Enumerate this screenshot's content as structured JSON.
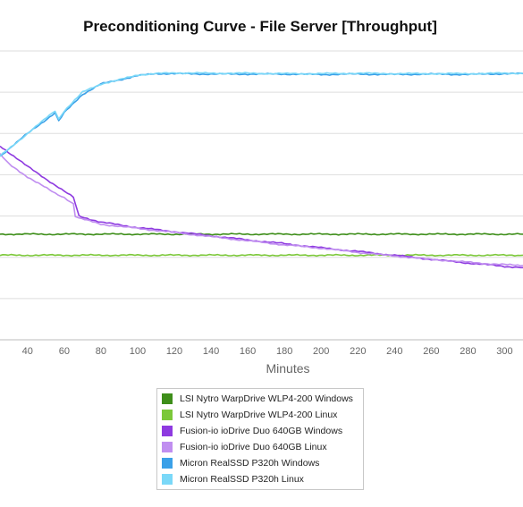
{
  "chart_data": {
    "type": "line",
    "title": "Preconditioning Curve - File Server [Throughput]",
    "xlabel": "Minutes",
    "ylabel": "",
    "x_ticks": [
      40,
      60,
      80,
      100,
      120,
      140,
      160,
      180,
      200,
      220,
      240,
      260,
      280,
      300
    ],
    "xlim": [
      25,
      310
    ],
    "ylim": [
      0,
      7
    ],
    "y_gridlines": [
      1,
      2,
      3,
      4,
      5,
      6,
      7
    ],
    "y_tick_labels_visible": false,
    "legend_placement": "bottom-center",
    "series": [
      {
        "name": "LSI Nytro WarpDrive WLP4-200 Windows",
        "color": "#3e8e1a",
        "x": [
          25,
          310
        ],
        "y": [
          2.56,
          2.56
        ]
      },
      {
        "name": "LSI Nytro WarpDrive WLP4-200 Linux",
        "color": "#7cc83a",
        "x": [
          25,
          310
        ],
        "y": [
          2.05,
          2.05
        ]
      },
      {
        "name": "Fusion-io ioDrive Duo 640GB Windows",
        "color": "#8e3ae0",
        "x": [
          25,
          40,
          60,
          65,
          66,
          68,
          80,
          100,
          120,
          140,
          160,
          180,
          200,
          220,
          240,
          260,
          280,
          300,
          310
        ],
        "y": [
          4.7,
          4.2,
          3.6,
          3.45,
          3.3,
          3.0,
          2.85,
          2.72,
          2.62,
          2.52,
          2.42,
          2.33,
          2.23,
          2.14,
          2.05,
          1.95,
          1.86,
          1.78,
          1.75
        ]
      },
      {
        "name": "Fusion-io ioDrive Duo 640GB Linux",
        "color": "#c08ef0",
        "x": [
          25,
          30,
          40,
          55,
          60,
          65,
          66,
          68,
          80,
          100,
          120,
          140,
          160,
          180,
          200,
          220,
          240,
          260,
          280,
          300,
          310
        ],
        "y": [
          4.5,
          4.25,
          3.95,
          3.55,
          3.45,
          3.3,
          3.0,
          2.95,
          2.8,
          2.7,
          2.6,
          2.5,
          2.4,
          2.3,
          2.22,
          2.12,
          2.03,
          1.95,
          1.88,
          1.82,
          1.8
        ]
      },
      {
        "name": "Micron RealSSD P320h Windows",
        "color": "#3aa0e8",
        "x": [
          25,
          40,
          55,
          57,
          60,
          70,
          80,
          90,
          100,
          110,
          120,
          140,
          160,
          180,
          200,
          220,
          240,
          260,
          280,
          300,
          310
        ],
        "y": [
          4.45,
          5.0,
          5.5,
          5.3,
          5.5,
          5.95,
          6.2,
          6.3,
          6.4,
          6.45,
          6.45,
          6.44,
          6.44,
          6.44,
          6.43,
          6.44,
          6.43,
          6.44,
          6.43,
          6.45,
          6.45
        ]
      },
      {
        "name": "Micron RealSSD P320h Linux",
        "color": "#7ad8f8",
        "x": [
          25,
          40,
          55,
          57,
          60,
          70,
          80,
          90,
          100,
          110,
          120,
          140,
          160,
          180,
          200,
          220,
          240,
          260,
          280,
          300,
          310
        ],
        "y": [
          4.45,
          5.0,
          5.55,
          5.35,
          5.55,
          6.0,
          6.2,
          6.3,
          6.42,
          6.45,
          6.47,
          6.46,
          6.46,
          6.45,
          6.45,
          6.46,
          6.45,
          6.45,
          6.45,
          6.46,
          6.46
        ]
      }
    ]
  }
}
